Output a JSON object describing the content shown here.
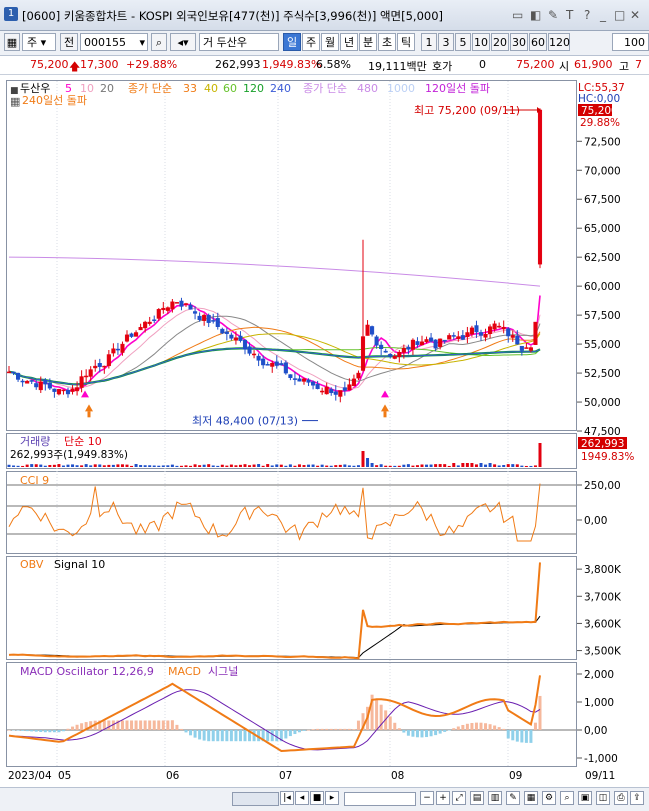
{
  "window": {
    "title": "[0600] 키움종합차트 - KOSPI 외국인보유[477(천)] 주식수[3,996(천)] 액면[5,000]",
    "controls": [
      "▭",
      "◧",
      "✎",
      "T",
      "?",
      "_",
      "□",
      "✕"
    ]
  },
  "toolbar": {
    "market": "주",
    "prev_label": "전",
    "code": "000155",
    "stock_name": "두산우",
    "stock_prefix": "거",
    "periods": [
      "일",
      "주",
      "월",
      "년",
      "분",
      "초",
      "틱"
    ],
    "active_period": "일",
    "intervals": [
      "1",
      "3",
      "5",
      "10",
      "20",
      "30",
      "60",
      "120"
    ],
    "count": "100"
  },
  "pricebar": {
    "price": "75,200",
    "change": "17,300",
    "change_pct": "+29.88%",
    "volume": "262,993",
    "volume_pct": "1,949.83%",
    "turnover_pct": "6.58%",
    "amount": "19,111백만",
    "hoga_label": "호가",
    "hoga_value": "0",
    "last_price": "75,200",
    "open_label": "시",
    "open_value": "61,900",
    "high_label": "고",
    "high_value": "7"
  },
  "price_panel": {
    "legend_name": "두산우",
    "ma_values": [
      "5",
      "10",
      "20"
    ],
    "ma_label": "종가 단순",
    "ma2_values": [
      "33",
      "40",
      "60",
      "120",
      "240"
    ],
    "ma3_label": "종가 단순",
    "ma3_values": [
      "480",
      "1000"
    ],
    "breakout_label": "120일선 돌파",
    "breakout2_label": "240일선 돌파",
    "lc_label": "LC:55,37",
    "hc_label": "HC:0,00",
    "cur_price_tag": "75,200",
    "cur_pct_tag": "29.88%",
    "high_annotation": "최고 75,200 (09/11)",
    "low_annotation": "최저 48,400 (07/13)",
    "y_ticks": [
      "72,500",
      "70,000",
      "67,500",
      "65,000",
      "62,500",
      "60,000",
      "57,500",
      "55,000",
      "52,500",
      "50,000",
      "47,500"
    ]
  },
  "volume_panel": {
    "title": "거래량",
    "ma_label": "단순 10",
    "value_label": "262,993주(1,949.83%)",
    "tag_value": "262,993",
    "tag_pct": "1949.83%"
  },
  "cci_panel": {
    "title": "CCI 9",
    "y_ticks": [
      "250,00",
      "0,00"
    ]
  },
  "obv_panel": {
    "title": "OBV",
    "signal_label": "Signal 10",
    "y_ticks": [
      "3,800K",
      "3,700K",
      "3,600K",
      "3,500K"
    ]
  },
  "macd_panel": {
    "osc_label": "MACD Oscillator 12,26,9",
    "macd_label": "MACD",
    "signal_label": "시그널",
    "y_ticks": [
      "2,000",
      "1,000",
      "0,00",
      "-1,000"
    ]
  },
  "x_axis": {
    "labels": [
      "2023/04",
      "05",
      "06",
      "07",
      "08",
      "09",
      "09/11"
    ]
  },
  "colors": {
    "up": "#e3000f",
    "down": "#1f4fc9",
    "ma5": "#ff00cc",
    "ma120": "#0a9a2a",
    "orange": "#f07b16",
    "macd_bar_up": "#f6b89c",
    "macd_bar_down": "#8fd0ea"
  }
}
